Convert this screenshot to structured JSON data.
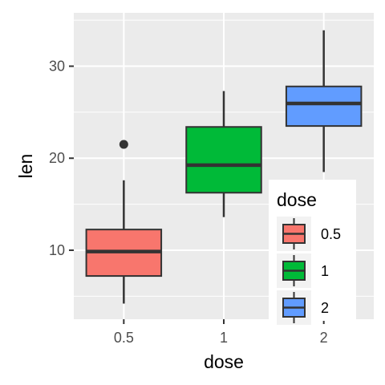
{
  "chart_data": {
    "type": "box",
    "xlabel": "dose",
    "ylabel": "len",
    "ylim": [
      2.5,
      35.8
    ],
    "yticks": [
      10,
      20,
      30
    ],
    "y_tick_labels": [
      "10",
      "20",
      "30"
    ],
    "categories": [
      "0.5",
      "1",
      "2"
    ],
    "grid": true,
    "legend": {
      "title": "dose",
      "placement": "bottom-right-inside",
      "entries": [
        "0.5",
        "1",
        "2"
      ]
    },
    "series": [
      {
        "name": "0.5",
        "color": "#F8766D",
        "q1": 7.2,
        "median": 9.85,
        "q3": 12.25,
        "whisker_low": 4.2,
        "whisker_high": 17.6,
        "outliers": [
          21.5
        ]
      },
      {
        "name": "1",
        "color": "#00BA38",
        "q1": 16.25,
        "median": 19.25,
        "q3": 23.4,
        "whisker_low": 13.6,
        "whisker_high": 27.3,
        "outliers": []
      },
      {
        "name": "2",
        "color": "#619CFF",
        "q1": 23.5,
        "median": 25.95,
        "q3": 27.8,
        "whisker_low": 18.5,
        "whisker_high": 33.9,
        "outliers": []
      }
    ]
  }
}
